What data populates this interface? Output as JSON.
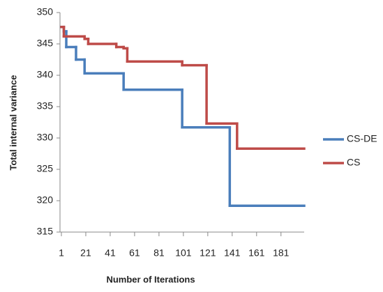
{
  "chart_data": {
    "type": "line",
    "drawstyle": "steps-post",
    "x_label": "Number of Iterations",
    "y_label": "Total  internal variance",
    "xlim": [
      1,
      200
    ],
    "xticks": [
      1,
      21,
      41,
      61,
      81,
      101,
      121,
      141,
      161,
      181
    ],
    "ylim": [
      315,
      350
    ],
    "yticks": [
      315,
      320,
      325,
      330,
      335,
      340,
      345,
      350
    ],
    "grid": false,
    "legend": "right",
    "series": [
      {
        "name": "CS-DE",
        "color": "#4a7ebb",
        "x": [
          1,
          3,
          5,
          13,
          20,
          52,
          100,
          139
        ],
        "values": [
          347.7,
          347,
          344.5,
          342.5,
          340.3,
          337.7,
          331.7,
          319.2
        ]
      },
      {
        "name": "CS",
        "color": "#be4b48",
        "x": [
          1,
          3,
          20,
          23,
          46,
          52,
          55,
          100,
          120,
          145
        ],
        "values": [
          347.7,
          346.2,
          345.8,
          345,
          344.5,
          344.3,
          342.2,
          341.6,
          332.3,
          328.3
        ]
      }
    ]
  }
}
